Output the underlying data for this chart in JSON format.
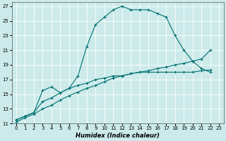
{
  "xlabel": "Humidex (Indice chaleur)",
  "bg_color": "#cceaea",
  "grid_color": "#b0d8d8",
  "line_color": "#007070",
  "xlim": [
    -0.5,
    23.5
  ],
  "ylim": [
    11,
    27.5
  ],
  "xticks": [
    0,
    1,
    2,
    3,
    4,
    5,
    6,
    7,
    8,
    9,
    10,
    11,
    12,
    13,
    14,
    15,
    16,
    17,
    18,
    19,
    20,
    21,
    22,
    23
  ],
  "yticks": [
    11,
    13,
    15,
    17,
    19,
    21,
    23,
    25,
    27
  ],
  "series1_x": [
    0,
    1,
    2,
    3,
    4,
    5,
    6,
    7,
    8,
    9,
    10,
    11,
    12,
    13,
    14,
    15,
    16,
    17,
    18,
    19,
    20,
    21,
    22
  ],
  "series1_y": [
    11.5,
    12.0,
    12.5,
    15.5,
    16.0,
    15.2,
    15.8,
    17.5,
    21.5,
    24.5,
    25.5,
    26.5,
    27.0,
    26.5,
    26.5,
    26.5,
    26.0,
    25.5,
    23.0,
    21.0,
    19.5,
    18.5,
    18.0
  ],
  "series2_x": [
    0,
    1,
    2,
    3,
    4,
    5,
    6,
    7,
    8,
    9,
    10,
    11,
    12,
    13,
    14,
    15,
    16,
    17,
    18,
    19,
    20,
    21,
    22
  ],
  "series2_y": [
    11.5,
    12.0,
    12.5,
    14.0,
    14.5,
    15.2,
    15.8,
    16.2,
    16.5,
    17.0,
    17.2,
    17.5,
    17.5,
    17.8,
    18.0,
    18.0,
    18.0,
    18.0,
    18.0,
    18.0,
    18.0,
    18.2,
    18.3
  ],
  "series3_x": [
    0,
    1,
    2,
    3,
    4,
    5,
    6,
    7,
    8,
    9,
    10,
    11,
    12,
    13,
    14,
    15,
    16,
    17,
    18,
    19,
    20,
    21,
    22
  ],
  "series3_y": [
    11.2,
    11.8,
    12.3,
    13.0,
    13.5,
    14.2,
    14.8,
    15.3,
    15.8,
    16.2,
    16.7,
    17.2,
    17.5,
    17.8,
    18.0,
    18.2,
    18.5,
    18.7,
    19.0,
    19.2,
    19.5,
    19.8,
    21.0
  ]
}
